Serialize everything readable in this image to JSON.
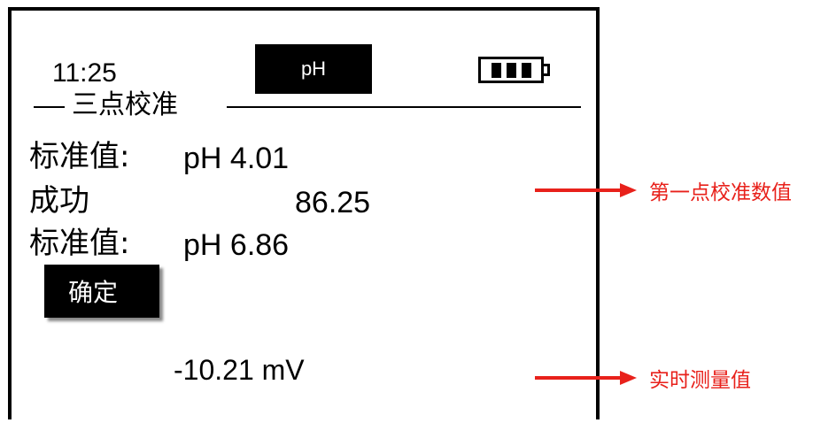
{
  "status_bar": {
    "time": "11:25",
    "mode": "pH",
    "battery_icon": "battery-full-icon"
  },
  "section": {
    "title": "三点校准"
  },
  "rows": [
    {
      "label": "标准值:",
      "value": "pH 4.01"
    },
    {
      "label": "成功",
      "value": "86.25"
    },
    {
      "label": "标准值:",
      "value": "pH 6.86"
    }
  ],
  "confirm_button": {
    "label": "确定"
  },
  "reading": {
    "value": "-10.21 mV"
  },
  "annotations": [
    {
      "text": "第一点校准数值",
      "arrow_icon": "arrow-right-icon"
    },
    {
      "text": "实时测量值",
      "arrow_icon": "arrow-right-icon"
    }
  ],
  "colors": {
    "annotation": "#e8211b",
    "screen_border": "#000000"
  }
}
